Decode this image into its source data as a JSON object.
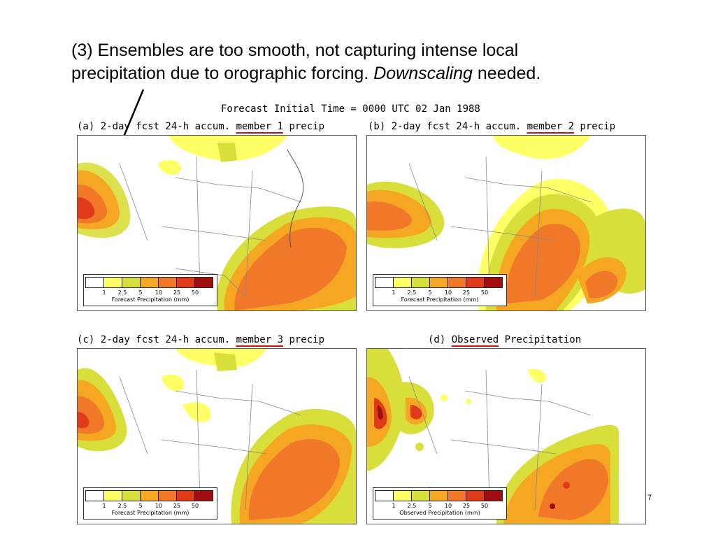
{
  "heading": {
    "line1": "(3)  Ensembles are too smooth, not capturing intense local",
    "line2_prefix": "precipitation due to orographic forcing.  ",
    "line2_italic": "Downscaling",
    "line2_suffix": " needed."
  },
  "figure": {
    "title": "Forecast Initial Time = 0000 UTC 02 Jan 1988"
  },
  "panels": {
    "a": {
      "prefix": "(a) 2-day fcst 24-h accum. ",
      "highlight": "member 1",
      "suffix": " precip",
      "legend_label": "Forecast Precipitation (mm)"
    },
    "b": {
      "prefix": "(b) 2-day fcst 24-h accum. ",
      "highlight": "member 2",
      "suffix": " precip",
      "legend_label": "Forecast Precipitation (mm)"
    },
    "c": {
      "prefix": "(c) 2-day fcst 24-h accum. ",
      "highlight": "member 3",
      "suffix": " precip",
      "legend_label": "Forecast Precipitation (mm)"
    },
    "d": {
      "prefix": "(d) ",
      "highlight": "Observed",
      "suffix": " Precipitation",
      "legend_label": "Observed Precipitation (mm)"
    }
  },
  "legend": {
    "ticks": [
      "1",
      "2.5",
      "5",
      "10",
      "25",
      "50"
    ],
    "colors": [
      "#ffffff",
      "#ffff66",
      "#d8de3a",
      "#f5a623",
      "#f07828",
      "#e03a18",
      "#a00e10"
    ]
  },
  "page_number": "7",
  "accent_color": "#d01010"
}
